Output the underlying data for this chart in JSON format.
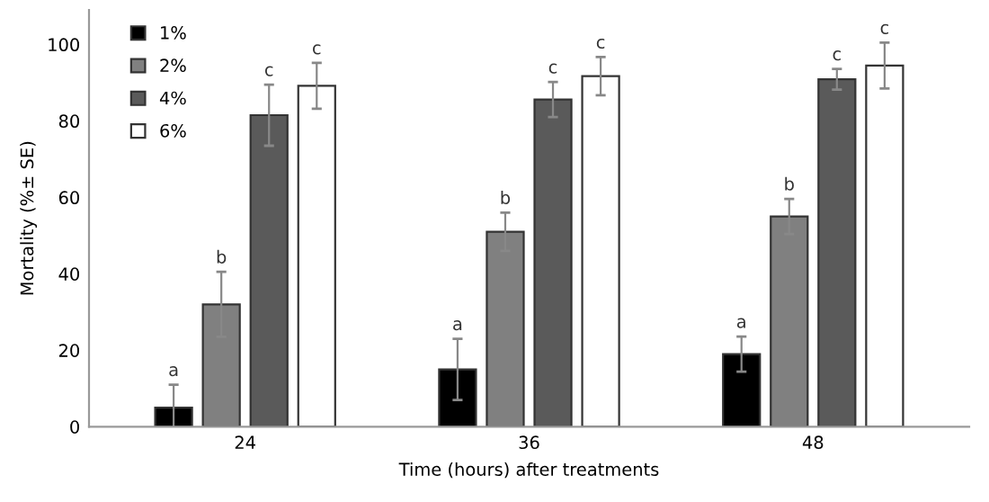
{
  "chart_data": {
    "type": "bar",
    "xlabel": "Time (hours) after treatments",
    "ylabel": "Mortality (%± SE)",
    "categories": [
      "24",
      "36",
      "48"
    ],
    "series": [
      {
        "name": "1%",
        "color": "#000000",
        "values": [
          5,
          15,
          19
        ],
        "errors": [
          6,
          8,
          4.6
        ],
        "value_labels": [
          "a",
          "a",
          "a"
        ]
      },
      {
        "name": "2%",
        "color": "#808080",
        "values": [
          32,
          51,
          55
        ],
        "errors": [
          8.5,
          5,
          4.6
        ],
        "value_labels": [
          "b",
          "b",
          "b"
        ]
      },
      {
        "name": "4%",
        "color": "#5a5a5a",
        "values": [
          81.5,
          85.6,
          90.9
        ],
        "errors": [
          8,
          4.6,
          2.7
        ],
        "value_labels": [
          "c",
          "c",
          "c"
        ]
      },
      {
        "name": "6%",
        "color": "#ffffff",
        "values": [
          89.2,
          91.7,
          94.5
        ],
        "errors": [
          6,
          5,
          6
        ],
        "value_labels": [
          "c",
          "c",
          "c"
        ]
      }
    ],
    "ylim": [
      0,
      109
    ],
    "yticks": [
      0,
      20,
      40,
      60,
      80,
      100
    ],
    "grid": false,
    "legend": "top left"
  }
}
